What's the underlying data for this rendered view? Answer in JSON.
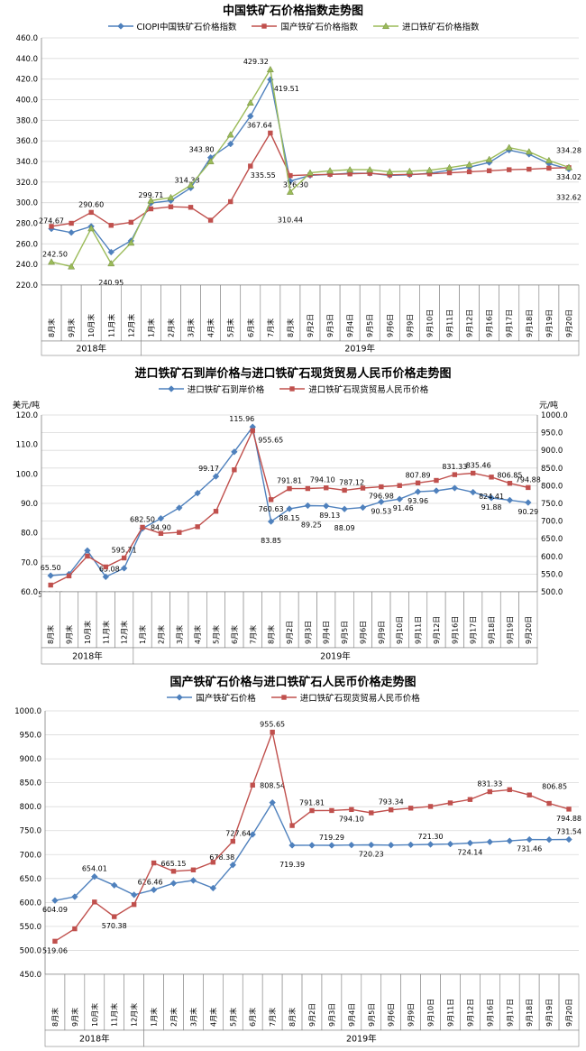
{
  "chart_data": [
    {
      "type": "line",
      "title": "中国铁矿石价格指数走势图",
      "categories": [
        "8月末",
        "9月末",
        "10月末",
        "11月末",
        "12月末",
        "1月末",
        "2月末",
        "3月末",
        "4月末",
        "5月末",
        "6月末",
        "7月末",
        "8月末",
        "9月2日",
        "9月3日",
        "9月4日",
        "9月5日",
        "9月6日",
        "9月9日",
        "9月10日",
        "9月11日",
        "9月12日",
        "9月16日",
        "9月17日",
        "9月18日",
        "9月19日",
        "9月20日"
      ],
      "year_groups": [
        {
          "label": "2018年",
          "span": 5
        },
        {
          "label": "2019年",
          "span": 22
        }
      ],
      "y_left": {
        "min": 220,
        "max": 460,
        "step": 20
      },
      "grid_axis": "L",
      "series": [
        {
          "name": "CIOPI中国铁矿石价格指数",
          "color": "#4F81BD",
          "marker": "diamond",
          "axis": "L",
          "values": [
            274.67,
            271,
            277,
            252,
            263,
            299.71,
            302,
            314.33,
            343.8,
            357,
            384,
            419.51,
            321,
            326.5,
            327.5,
            328.5,
            328.5,
            326.5,
            327,
            328.5,
            331.5,
            334.5,
            339,
            351,
            347,
            338,
            332.62
          ],
          "labels": [
            [
              0,
              "a",
              0
            ],
            [
              5,
              "a",
              0
            ],
            [
              7,
              "a",
              -4
            ],
            [
              8,
              "a",
              -10
            ],
            [
              11,
              "b",
              18
            ],
            [
              26,
              "b3",
              0
            ]
          ]
        },
        {
          "name": "国产铁矿石价格指数",
          "color": "#C0504D",
          "marker": "square",
          "axis": "L",
          "values": [
            277,
            280,
            290.6,
            278,
            281,
            294,
            296,
            295.5,
            283,
            301,
            335.55,
            367.64,
            326.3,
            327,
            327.5,
            328,
            328.5,
            327,
            327.5,
            328,
            329,
            330,
            331,
            332,
            332.5,
            333.5,
            334.02
          ],
          "labels": [
            [
              2,
              "a",
              0
            ],
            [
              10,
              "b",
              14
            ],
            [
              11,
              "a",
              -12
            ],
            [
              12,
              "b",
              6
            ],
            [
              26,
              "b",
              0
            ]
          ]
        },
        {
          "name": "进口铁矿石价格指数",
          "color": "#9BBB59",
          "marker": "triangle",
          "axis": "L",
          "values": [
            242.5,
            238,
            275,
            240.95,
            261,
            302,
            305,
            317,
            340,
            366,
            397,
            429.32,
            310.44,
            329,
            331,
            332,
            332,
            330,
            330.5,
            331.5,
            334,
            337,
            342,
            353.5,
            349.5,
            341,
            334.28
          ],
          "labels": [
            [
              0,
              "a",
              4
            ],
            [
              3,
              "b2",
              0
            ],
            [
              11,
              "a",
              -16
            ],
            [
              12,
              "b3",
              0
            ],
            [
              26,
              "a2",
              0
            ]
          ]
        }
      ]
    },
    {
      "type": "line",
      "title": "进口铁矿石到岸价格与进口铁矿石现货贸易人民币价格走势图",
      "categories": [
        "8月末",
        "9月末",
        "10月末",
        "11月末",
        "12月末",
        "1月末",
        "2月末",
        "3月末",
        "4月末",
        "5月末",
        "6月末",
        "7月末",
        "8月末",
        "9月2日",
        "9月3日",
        "9月4日",
        "9月5日",
        "9月6日",
        "9月9日",
        "9月10日",
        "9月11日",
        "9月12日",
        "9月16日",
        "9月17日",
        "9月18日",
        "9月19日",
        "9月20日"
      ],
      "year_groups": [
        {
          "label": "2018年",
          "span": 5
        },
        {
          "label": "2019年",
          "span": 22
        }
      ],
      "y_left": {
        "min": 60,
        "max": 120,
        "step": 10,
        "unit": "美元/吨"
      },
      "y_right": {
        "min": 500,
        "max": 1000,
        "step": 50,
        "unit": "元/吨"
      },
      "grid_axis": "R",
      "series": [
        {
          "name": "进口铁矿石到岸价格",
          "color": "#4F81BD",
          "marker": "diamond",
          "axis": "L",
          "values": [
            65.5,
            66,
            74,
            65.08,
            68,
            81.5,
            84.9,
            88.5,
            93.5,
            99.17,
            107.5,
            115.96,
            83.85,
            88.15,
            89.25,
            89.13,
            88.09,
            88.6,
            90.53,
            91.46,
            93.96,
            94.3,
            95.2,
            93.8,
            91.88,
            91.1,
            90.29
          ],
          "labels": [
            [
              0,
              "a",
              0
            ],
            [
              3,
              "a",
              4
            ],
            [
              6,
              "b",
              0
            ],
            [
              9,
              "a",
              -8
            ],
            [
              11,
              "a",
              -12
            ],
            [
              12,
              "b2",
              0
            ],
            [
              13,
              "b",
              0
            ],
            [
              14,
              "b2",
              4
            ],
            [
              15,
              "b",
              4
            ],
            [
              16,
              "b2",
              0
            ],
            [
              18,
              "b",
              0
            ],
            [
              19,
              "b",
              4
            ],
            [
              20,
              "b",
              0
            ],
            [
              24,
              "b",
              0
            ],
            [
              26,
              "b",
              0
            ]
          ]
        },
        {
          "name": "进口铁矿石现货贸易人民币价格",
          "color": "#C0504D",
          "marker": "square",
          "axis": "R",
          "values": [
            519.06,
            545,
            601,
            570.38,
            595.71,
            682.5,
            665.15,
            668,
            684,
            727.64,
            845,
            955.65,
            760.63,
            791.81,
            792,
            794.1,
            787.12,
            793.34,
            796.98,
            800.5,
            807.89,
            815,
            831.33,
            835.46,
            824.41,
            806.85,
            794.88
          ],
          "labels": [
            [
              0,
              "b",
              0
            ],
            [
              4,
              "a",
              0
            ],
            [
              5,
              "a",
              0
            ],
            [
              11,
              "b",
              20
            ],
            [
              12,
              "b",
              0
            ],
            [
              13,
              "a",
              0
            ],
            [
              15,
              "a",
              -4
            ],
            [
              16,
              "a",
              8
            ],
            [
              18,
              "b",
              0
            ],
            [
              20,
              "a",
              0
            ],
            [
              22,
              "a",
              0
            ],
            [
              23,
              "a",
              6
            ],
            [
              24,
              "b2",
              0
            ],
            [
              25,
              "a",
              0
            ],
            [
              26,
              "a",
              0
            ]
          ]
        }
      ]
    },
    {
      "type": "line",
      "title": "国产铁矿石价格与进口铁矿石人民币价格走势图",
      "categories": [
        "8月末",
        "9月末",
        "10月末",
        "11月末",
        "12月末",
        "1月末",
        "2月末",
        "3月末",
        "4月末",
        "5月末",
        "6月末",
        "7月末",
        "8月末",
        "9月2日",
        "9月3日",
        "9月4日",
        "9月5日",
        "9月6日",
        "9月9日",
        "9月10日",
        "9月11日",
        "9月12日",
        "9月16日",
        "9月17日",
        "9月18日",
        "9月19日",
        "9月20日"
      ],
      "year_groups": [
        {
          "label": "2018年",
          "span": 5
        },
        {
          "label": "2019年",
          "span": 22
        }
      ],
      "y_left": {
        "min": 450,
        "max": 1000,
        "step": 50
      },
      "grid_axis": "L",
      "series": [
        {
          "name": "国产铁矿石价格",
          "color": "#4F81BD",
          "marker": "diamond",
          "axis": "L",
          "values": [
            604.09,
            612,
            654.01,
            636,
            616,
            626.46,
            640,
            646,
            630,
            678.38,
            742,
            808.54,
            719.39,
            719.5,
            719.29,
            720,
            720.23,
            719.8,
            720.5,
            721.3,
            722,
            724.14,
            726.5,
            728.5,
            731.46,
            731.2,
            731.54
          ],
          "labels": [
            [
              0,
              "b",
              0
            ],
            [
              2,
              "a",
              0
            ],
            [
              5,
              "a",
              -4
            ],
            [
              9,
              "a",
              -12
            ],
            [
              11,
              "a2",
              0
            ],
            [
              12,
              "b2",
              0
            ],
            [
              14,
              "a",
              0
            ],
            [
              16,
              "b",
              0
            ],
            [
              19,
              "a",
              0
            ],
            [
              21,
              "b",
              0
            ],
            [
              24,
              "b",
              0
            ],
            [
              26,
              "a",
              0
            ]
          ]
        },
        {
          "name": "进口铁矿石现货贸易人民币价格",
          "color": "#C0504D",
          "marker": "square",
          "axis": "L",
          "values": [
            519.06,
            545,
            601,
            570.38,
            595.71,
            682.5,
            665.15,
            668,
            684,
            727.64,
            845,
            955.65,
            760.63,
            791.81,
            792,
            794.1,
            787.12,
            793.34,
            796.98,
            800.5,
            807.89,
            815,
            831.33,
            835.46,
            824.41,
            806.85,
            794.88
          ],
          "labels": [
            [
              0,
              "b",
              0
            ],
            [
              3,
              "b",
              0
            ],
            [
              6,
              "a",
              0
            ],
            [
              9,
              "a",
              6
            ],
            [
              11,
              "a",
              0
            ],
            [
              13,
              "a",
              0
            ],
            [
              15,
              "b",
              0
            ],
            [
              17,
              "a",
              0
            ],
            [
              22,
              "a",
              0
            ],
            [
              25,
              "a2",
              6
            ],
            [
              26,
              "b",
              0
            ]
          ]
        }
      ]
    }
  ]
}
